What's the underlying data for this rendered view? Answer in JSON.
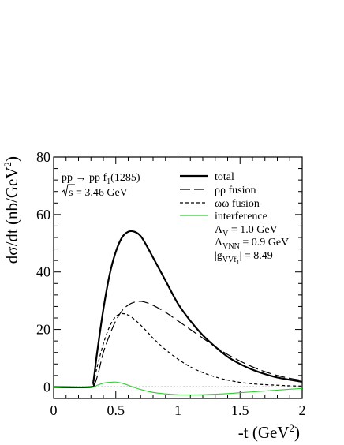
{
  "chart_data": {
    "type": "line",
    "xlabel_main": "-t (GeV",
    "xlabel_sup": "2",
    "xlabel_close": ")",
    "ylabel_main": "dσ/dt (nb/GeV",
    "ylabel_sup": "2",
    "ylabel_close": ")",
    "xlim": [
      0,
      2
    ],
    "ylim": [
      -4,
      80
    ],
    "xticks": [
      "0",
      "0.5",
      "1",
      "1.5",
      "2"
    ],
    "yticks": [
      "0",
      "20",
      "40",
      "60",
      "80"
    ],
    "reaction_main": "pp → pp f",
    "reaction_sub": "1",
    "reaction_tail": "(1285)",
    "energy_root": "s",
    "energy_tail": " = 3.46 GeV",
    "legend_labels": {
      "total": "total",
      "rho": "ρρ fusion",
      "omega": "ωω fusion",
      "interference": "interference"
    },
    "params": {
      "lv_main": "Λ",
      "lv_sub": "V",
      "lv_tail": " = 1.0 GeV",
      "lvnn_main": "Λ",
      "lvnn_sub": "VNN",
      "lvnn_tail": " = 0.9 GeV",
      "g_bar": "|g",
      "g_sub": "VVf",
      "g_subsub": "1",
      "g_tail": "| = 8.49"
    },
    "colors": {
      "total": "#000000",
      "rho": "#000000",
      "omega": "#000000",
      "interference": "#33cc33",
      "zero_line": "#000000"
    },
    "series": [
      {
        "key": "total",
        "style": "solid-thick",
        "x": [
          0,
          0.3,
          0.32,
          0.35,
          0.4,
          0.45,
          0.5,
          0.55,
          0.6,
          0.65,
          0.7,
          0.75,
          0.8,
          0.9,
          1.0,
          1.1,
          1.2,
          1.3,
          1.4,
          1.5,
          1.6,
          1.7,
          1.8,
          1.9,
          2.0
        ],
        "y": [
          0,
          0,
          2,
          12,
          27,
          39,
          47,
          52,
          54,
          54,
          52.5,
          49,
          45,
          37,
          29,
          23,
          18,
          14,
          10.5,
          8,
          6,
          4.5,
          3.3,
          2.5,
          1.8
        ]
      },
      {
        "key": "rho",
        "style": "long-dash",
        "x": [
          0,
          0.3,
          0.33,
          0.36,
          0.4,
          0.45,
          0.5,
          0.55,
          0.6,
          0.65,
          0.7,
          0.75,
          0.8,
          0.9,
          1.0,
          1.1,
          1.2,
          1.3,
          1.4,
          1.5,
          1.6,
          1.7,
          1.8,
          1.9,
          2.0
        ],
        "y": [
          0,
          0,
          1,
          5,
          12,
          18,
          23,
          26.5,
          28.5,
          29.5,
          29.8,
          29.3,
          28.4,
          26,
          23,
          20,
          17,
          14,
          11.3,
          9,
          7,
          5.3,
          4,
          3,
          2.3
        ]
      },
      {
        "key": "omega",
        "style": "short-dash",
        "x": [
          0,
          0.3,
          0.32,
          0.35,
          0.4,
          0.45,
          0.5,
          0.55,
          0.6,
          0.65,
          0.7,
          0.75,
          0.8,
          0.9,
          1.0,
          1.1,
          1.2,
          1.3,
          1.4,
          1.5,
          1.6,
          1.7,
          1.8,
          1.9,
          2.0
        ],
        "y": [
          0,
          0,
          1.5,
          7,
          15,
          21,
          24.5,
          25.5,
          25,
          23.5,
          21.5,
          19.3,
          17,
          13,
          9.7,
          7,
          5,
          3.5,
          2.4,
          1.6,
          1.1,
          0.8,
          0.6,
          0.4,
          0.3
        ]
      },
      {
        "key": "interference",
        "style": "solid-thin",
        "x": [
          0,
          0.3,
          0.35,
          0.4,
          0.45,
          0.5,
          0.55,
          0.6,
          0.65,
          0.7,
          0.8,
          0.9,
          1.0,
          1.1,
          1.2,
          1.3,
          1.4,
          1.5,
          1.6,
          1.7,
          1.8,
          1.9,
          2.0
        ],
        "y": [
          0,
          0,
          0.6,
          1.3,
          1.6,
          1.7,
          1.3,
          0.6,
          -0.2,
          -0.9,
          -1.9,
          -2.4,
          -2.7,
          -2.75,
          -2.7,
          -2.5,
          -2.3,
          -2.0,
          -1.7,
          -1.4,
          -1.1,
          -0.8,
          -0.5
        ]
      }
    ]
  }
}
